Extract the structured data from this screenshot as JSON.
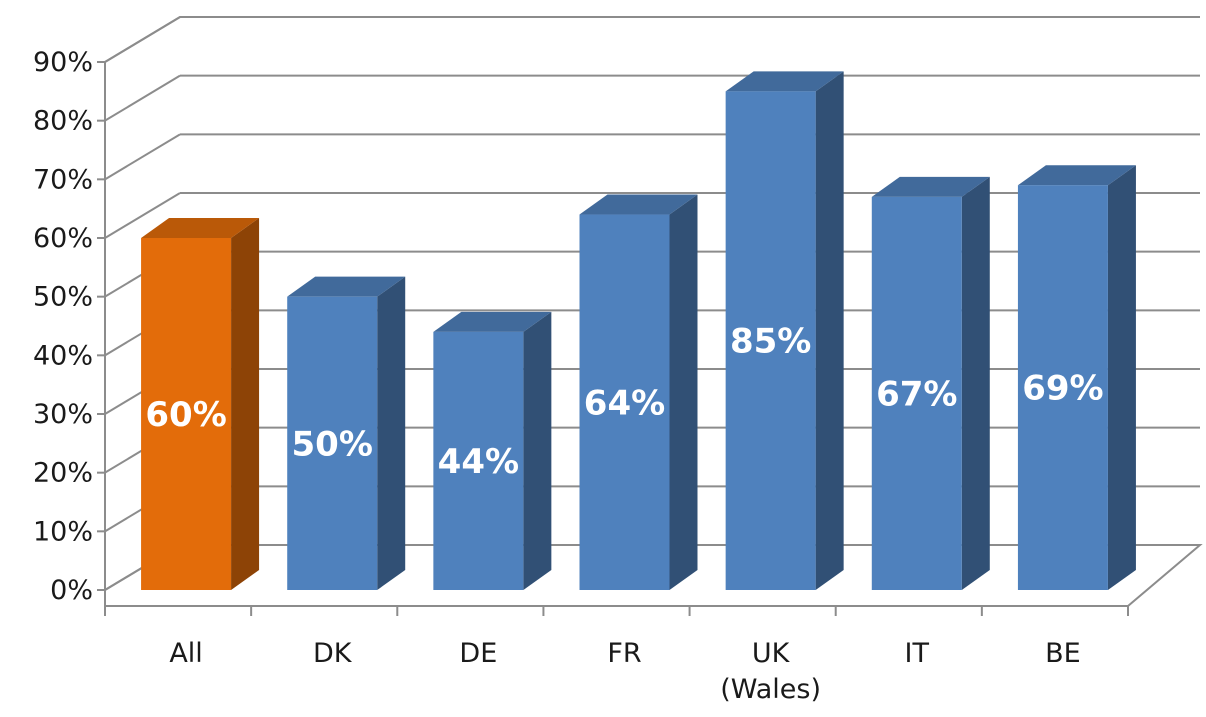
{
  "chart_data": {
    "type": "bar",
    "title": "",
    "xlabel": "",
    "ylabel": "",
    "ylim": [
      0,
      90
    ],
    "y_ticks": [
      "0%",
      "10%",
      "20%",
      "30%",
      "40%",
      "50%",
      "60%",
      "70%",
      "80%",
      "90%"
    ],
    "categories": [
      {
        "label": "All",
        "sublabel": ""
      },
      {
        "label": "DK",
        "sublabel": ""
      },
      {
        "label": "DE",
        "sublabel": ""
      },
      {
        "label": "FR",
        "sublabel": ""
      },
      {
        "label": "UK",
        "sublabel": "(Wales)"
      },
      {
        "label": "IT",
        "sublabel": ""
      },
      {
        "label": "BE",
        "sublabel": ""
      }
    ],
    "values": [
      60,
      50,
      44,
      64,
      85,
      67,
      69
    ],
    "value_labels": [
      "60%",
      "50%",
      "44%",
      "64%",
      "85%",
      "67%",
      "69%"
    ],
    "bar_colors": [
      "#e36c0a",
      "#4f81bd",
      "#4f81bd",
      "#4f81bd",
      "#4f81bd",
      "#4f81bd",
      "#4f81bd"
    ],
    "gridlines": true,
    "style": "3d-column"
  }
}
